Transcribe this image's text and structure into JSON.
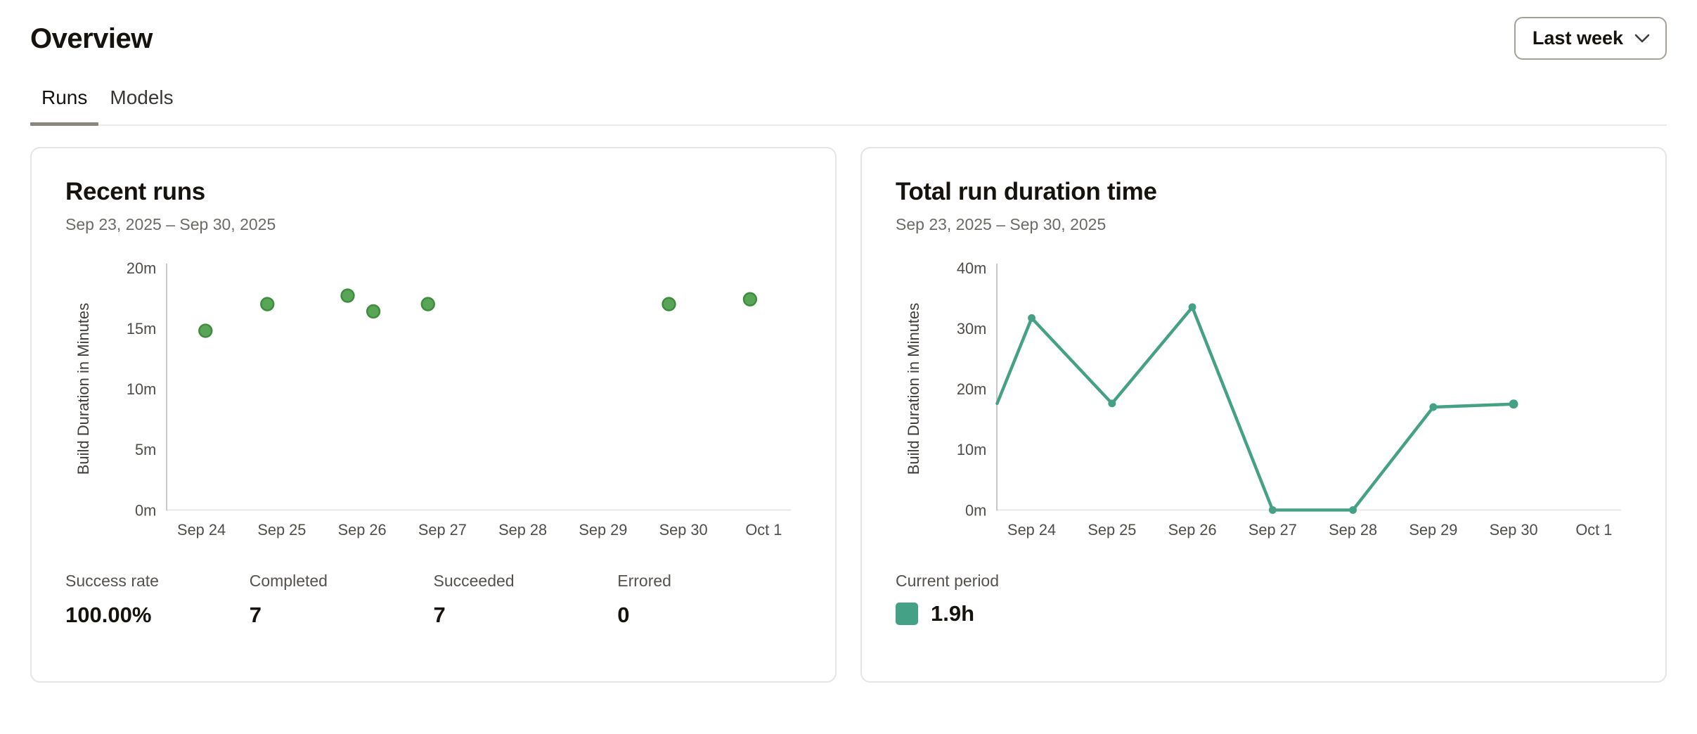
{
  "header": {
    "title": "Overview",
    "period_selector": {
      "label": "Last week"
    }
  },
  "tabs": {
    "items": [
      {
        "label": "Runs",
        "active": true
      },
      {
        "label": "Models",
        "active": false
      }
    ]
  },
  "cards": {
    "recent_runs": {
      "title": "Recent runs",
      "date_range": "Sep 23, 2025 – Sep 30, 2025",
      "stats": [
        {
          "label": "Success rate",
          "value": "100.00%"
        },
        {
          "label": "Completed",
          "value": "7"
        },
        {
          "label": "Succeeded",
          "value": "7"
        },
        {
          "label": "Errored",
          "value": "0"
        }
      ]
    },
    "total_run_duration": {
      "title": "Total run duration time",
      "date_range": "Sep 23, 2025 – Sep 30, 2025",
      "legend": {
        "label": "Current period",
        "value": "1.9h",
        "color": "#45a185"
      }
    }
  },
  "colors": {
    "scatter_fill": "#58a557",
    "scatter_stroke": "#3f8c3f",
    "line_teal": "#45a185",
    "axis_line": "#c9c6c2",
    "baseline": "#e9e7e4",
    "tick_text": "#504d49",
    "active_tab_underline": "#8a857f"
  },
  "chart_data": [
    {
      "type": "scatter",
      "title": "Recent runs",
      "subtitle": "Sep 23, 2025 – Sep 30, 2025",
      "xlabel": "",
      "ylabel": "Build Duration in Minutes",
      "x_ticks": [
        "Sep 24",
        "Sep 25",
        "Sep 26",
        "Sep 27",
        "Sep 28",
        "Sep 29",
        "Sep 30",
        "Oct 1"
      ],
      "y_ticks": [
        "0m",
        "5m",
        "10m",
        "15m",
        "20m"
      ],
      "ylim": [
        0,
        20
      ],
      "grid": false,
      "x_unit": "days offset from Sep 24 tick",
      "points": [
        {
          "day": 0.05,
          "minutes": 14.8
        },
        {
          "day": 0.82,
          "minutes": 17.0
        },
        {
          "day": 1.82,
          "minutes": 17.7
        },
        {
          "day": 2.14,
          "minutes": 16.4
        },
        {
          "day": 2.82,
          "minutes": 17.0
        },
        {
          "day": 5.82,
          "minutes": 17.0
        },
        {
          "day": 6.83,
          "minutes": 17.4
        }
      ],
      "point_color": "#58a557",
      "point_stroke": "#3f8c3f"
    },
    {
      "type": "line",
      "title": "Total run duration time",
      "subtitle": "Sep 23, 2025 – Sep 30, 2025",
      "xlabel": "",
      "ylabel": "Build Duration in Minutes",
      "x_ticks": [
        "Sep 24",
        "Sep 25",
        "Sep 26",
        "Sep 27",
        "Sep 28",
        "Sep 29",
        "Sep 30",
        "Oct 1"
      ],
      "y_ticks": [
        "0m",
        "10m",
        "20m",
        "30m",
        "40m"
      ],
      "ylim": [
        0,
        40
      ],
      "grid": false,
      "x_unit": "days offset from Sep 24 tick",
      "points": [
        {
          "day": -0.43,
          "minutes": 17.6,
          "marker": false
        },
        {
          "day": 0,
          "minutes": 31.7,
          "marker": true
        },
        {
          "day": 1,
          "minutes": 17.6,
          "marker": true
        },
        {
          "day": 2,
          "minutes": 33.5,
          "marker": true
        },
        {
          "day": 3,
          "minutes": 0,
          "marker": true
        },
        {
          "day": 4,
          "minutes": 0,
          "marker": true
        },
        {
          "day": 5,
          "minutes": 17.0,
          "marker": true
        },
        {
          "day": 6,
          "minutes": 17.5,
          "marker": true
        }
      ],
      "line_color": "#45a185",
      "legend_position": "bottom-left",
      "legend_label": "Current period",
      "legend_value": "1.9h"
    }
  ]
}
